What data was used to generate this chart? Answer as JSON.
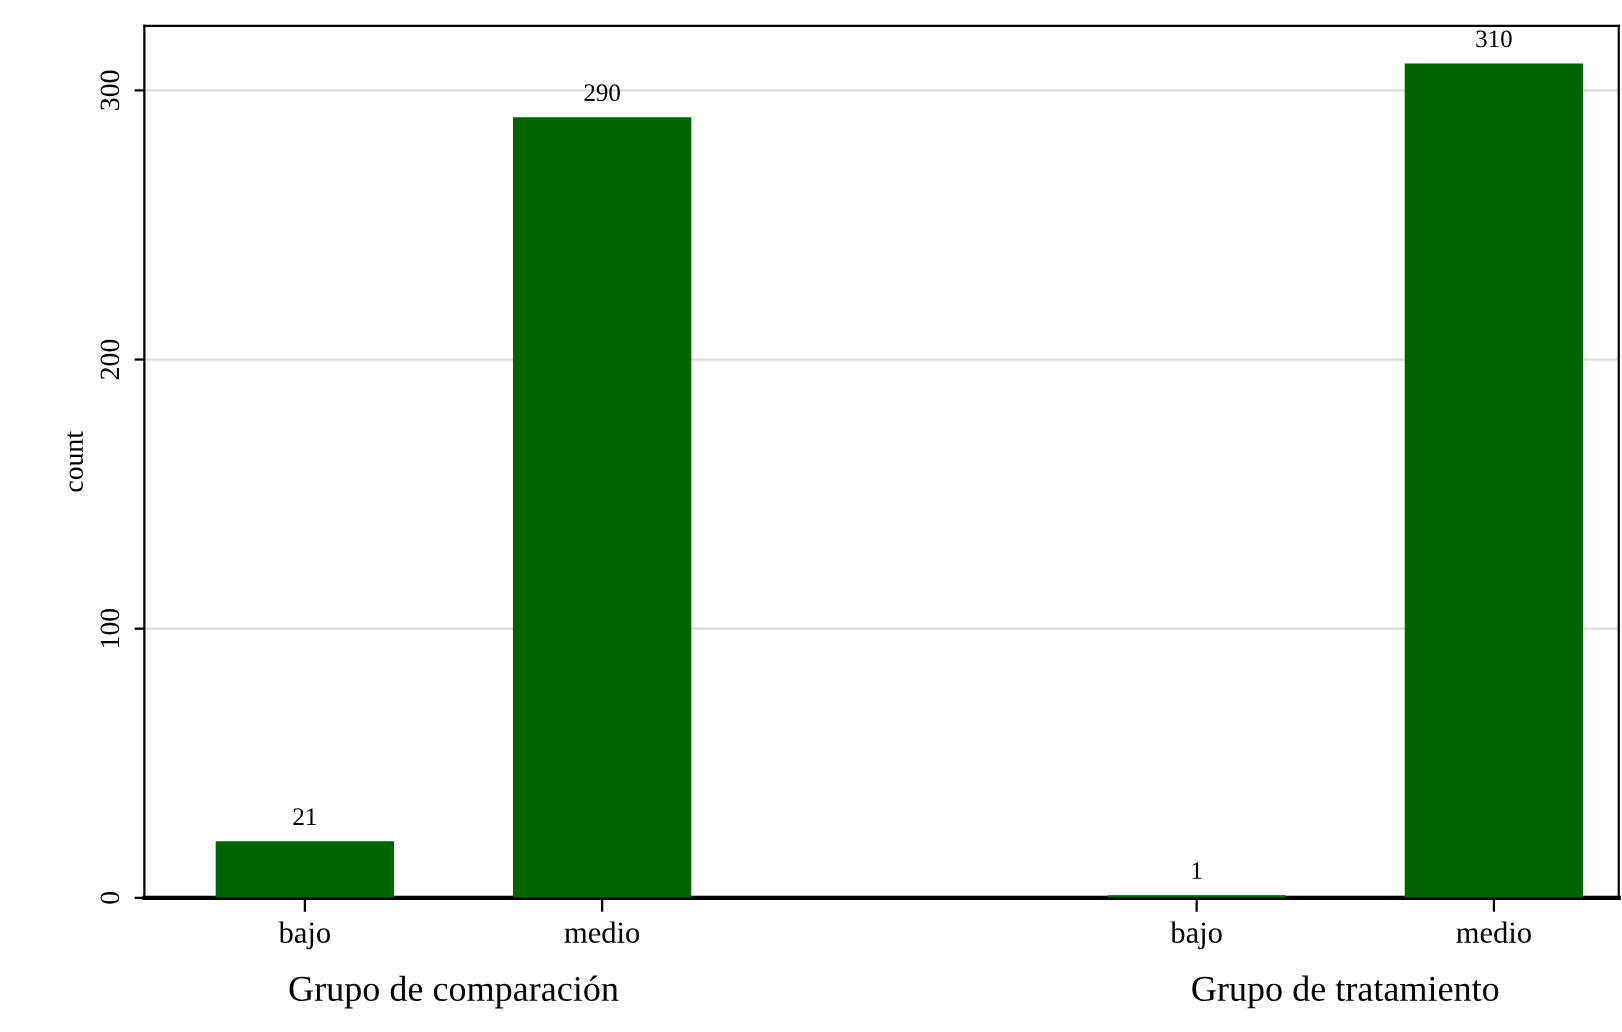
{
  "chart_data": {
    "type": "bar",
    "categories": [
      "bajo",
      "medio",
      null,
      "bajo",
      "medio"
    ],
    "values": [
      21,
      290,
      null,
      1,
      310
    ],
    "color": "#006400",
    "ylabel": "count",
    "ylim": [
      0,
      324
    ],
    "yticks": [
      0,
      100,
      200,
      300
    ],
    "grid": "y",
    "data_labels": true,
    "annotations": [
      "Grupo de comparación",
      "Grupo de tratamiento"
    ]
  }
}
